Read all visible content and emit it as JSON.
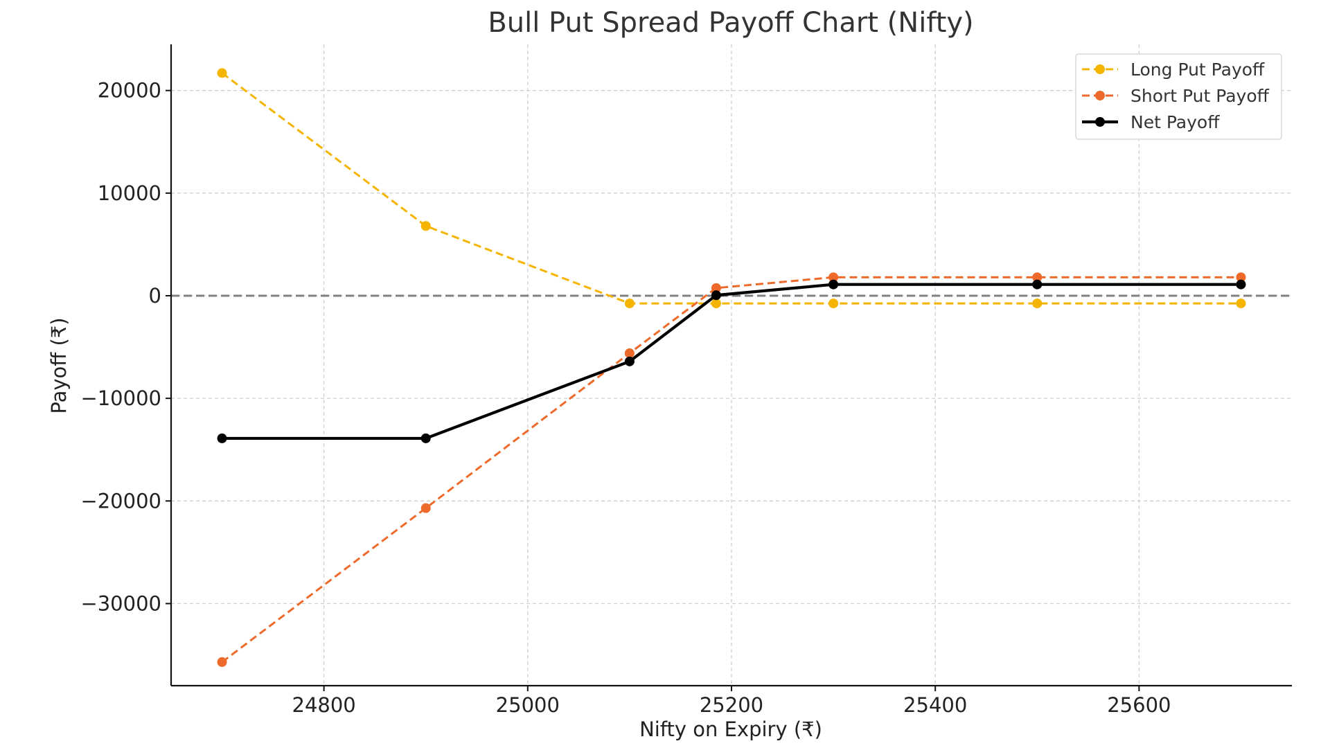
{
  "chart_data": {
    "type": "line",
    "title": "Bull Put Spread Payoff Chart (Nifty)",
    "xlabel": "Nifty on Expiry (₹)",
    "ylabel": "Payoff (₹)",
    "x": [
      24700,
      24900,
      25100,
      25185,
      25300,
      25500,
      25700
    ],
    "xlim": [
      24650,
      25750
    ],
    "ylim": [
      -38000,
      24500
    ],
    "xticks": [
      24800,
      25000,
      25200,
      25400,
      25600
    ],
    "xtick_labels": [
      "24800",
      "25000",
      "25200",
      "25400",
      "25600"
    ],
    "yticks": [
      -30000,
      -20000,
      -10000,
      0,
      10000,
      20000
    ],
    "ytick_labels": [
      "−30000",
      "−20000",
      "−10000",
      "0",
      "10000",
      "20000"
    ],
    "grid": true,
    "zero_line": true,
    "legend_position": "top-right",
    "series": [
      {
        "name": "Long Put Payoff",
        "color": "#F5B400",
        "style": "dashed",
        "values": [
          21700,
          6800,
          -750,
          -750,
          -750,
          -750,
          -750
        ]
      },
      {
        "name": "Short Put Payoff",
        "color": "#EE6A2A",
        "style": "dashed",
        "values": [
          -35700,
          -20700,
          -5600,
          750,
          1800,
          1800,
          1800
        ]
      },
      {
        "name": "Net Payoff",
        "color": "#000000",
        "style": "solid",
        "values": [
          -13900,
          -13900,
          -6400,
          50,
          1100,
          1100,
          1100
        ]
      }
    ]
  }
}
